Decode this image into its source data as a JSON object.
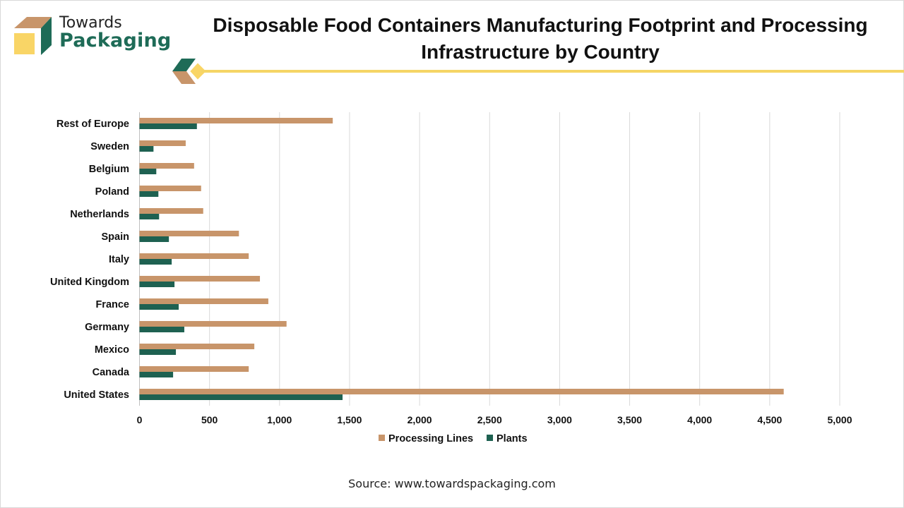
{
  "header": {
    "logo_line1": "Towards",
    "logo_line2": "Packaging",
    "title_line1": "Disposable Food Containers Manufacturing Footprint and Processing",
    "title_line2": "Infrastructure by Country"
  },
  "footer": {
    "source": "Source: www.towardspackaging.com"
  },
  "colors": {
    "processing_lines": "#c8956a",
    "plants": "#1e6151",
    "accent_yellow": "#f5d565",
    "brand_green": "#1e6b57"
  },
  "chart_data": {
    "type": "bar",
    "orientation": "horizontal",
    "title": "Disposable Food Containers Manufacturing Footprint and Processing Infrastructure by Country",
    "categories": [
      "United States",
      "Canada",
      "Mexico",
      "Germany",
      "France",
      "United Kingdom",
      "Italy",
      "Spain",
      "Netherlands",
      "Poland",
      "Belgium",
      "Sweden",
      "Rest of Europe"
    ],
    "series": [
      {
        "name": "Processing Lines",
        "color": "#c8956a",
        "values": [
          4600,
          780,
          820,
          1050,
          920,
          860,
          780,
          710,
          455,
          440,
          390,
          330,
          1380
        ]
      },
      {
        "name": "Plants",
        "color": "#1e6151",
        "values": [
          1450,
          240,
          260,
          320,
          280,
          250,
          230,
          210,
          140,
          135,
          120,
          100,
          410
        ]
      }
    ],
    "xlabel": "",
    "ylabel": "",
    "xlim": [
      0,
      5000
    ],
    "xticks": [
      0,
      500,
      1000,
      1500,
      2000,
      2500,
      3000,
      3500,
      4000,
      4500,
      5000
    ],
    "xtick_labels": [
      "0",
      "500",
      "1,000",
      "1,500",
      "2,000",
      "2,500",
      "3,000",
      "3,500",
      "4,000",
      "4,500",
      "5,000"
    ],
    "grid": true,
    "legend": "bottom"
  }
}
